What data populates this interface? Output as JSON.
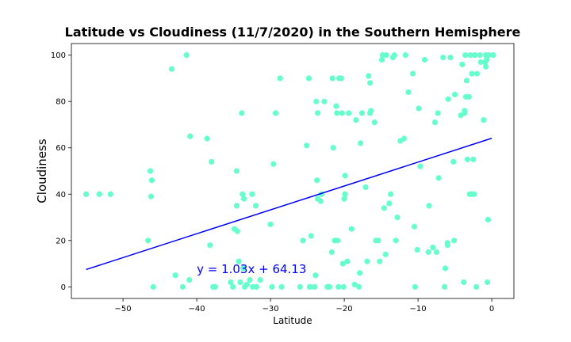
{
  "chart_data": {
    "type": "scatter",
    "title": "Latitude vs Cloudiness (11/7/2020) in the Southern Hemisphere",
    "xlabel": "Latitude",
    "ylabel": "Cloudiness",
    "xlim": [
      -57,
      3
    ],
    "ylim": [
      -5,
      105
    ],
    "xticks": [
      -50,
      -40,
      -30,
      -20,
      -10,
      0
    ],
    "yticks": [
      0,
      20,
      40,
      60,
      80,
      100
    ],
    "grid": false,
    "point_color": "#66ffcc",
    "line_color": "#0000ff",
    "regression": {
      "slope": 1.03,
      "intercept": 64.13,
      "x_range": [
        -55,
        0
      ]
    },
    "annotation": {
      "text": "y = 1.03x + 64.13",
      "x": -40,
      "y": 6,
      "color": "#0000ff"
    },
    "points": [
      [
        -55,
        40
      ],
      [
        -53.2,
        40
      ],
      [
        -51.7,
        40
      ],
      [
        -46.6,
        20
      ],
      [
        -46.3,
        50
      ],
      [
        -46.2,
        39
      ],
      [
        -46.1,
        46
      ],
      [
        -45.9,
        0
      ],
      [
        -43.4,
        94
      ],
      [
        -42.9,
        5
      ],
      [
        -41.9,
        0
      ],
      [
        -41.4,
        100
      ],
      [
        -40.9,
        65
      ],
      [
        -41.0,
        3
      ],
      [
        -38.6,
        64
      ],
      [
        -38.2,
        18
      ],
      [
        -38.0,
        54
      ],
      [
        -37.8,
        0
      ],
      [
        -37.5,
        0
      ],
      [
        -35.4,
        2
      ],
      [
        -35.1,
        0
      ],
      [
        -34.9,
        25
      ],
      [
        -34.6,
        50
      ],
      [
        -34.6,
        35
      ],
      [
        -34.5,
        24
      ],
      [
        -34.3,
        11
      ],
      [
        -34.1,
        2
      ],
      [
        -33.9,
        75
      ],
      [
        -33.8,
        40
      ],
      [
        -33.7,
        8
      ],
      [
        -33.6,
        38
      ],
      [
        -33.5,
        0
      ],
      [
        -33.2,
        1
      ],
      [
        -32.8,
        3
      ],
      [
        -32.5,
        40
      ],
      [
        -32.4,
        0
      ],
      [
        -31.9,
        0
      ],
      [
        -31.4,
        3
      ],
      [
        -32.0,
        35
      ],
      [
        -30.0,
        27
      ],
      [
        -29.8,
        0
      ],
      [
        -29.6,
        53
      ],
      [
        -29.3,
        75
      ],
      [
        -28.7,
        90
      ],
      [
        -28.5,
        0
      ],
      [
        -26.0,
        0
      ],
      [
        -25.6,
        20
      ],
      [
        -25.1,
        61
      ],
      [
        -24.8,
        90
      ],
      [
        -24.7,
        0
      ],
      [
        -24.6,
        0
      ],
      [
        -24.5,
        22
      ],
      [
        -24.0,
        0
      ],
      [
        -23.8,
        80
      ],
      [
        -23.6,
        75
      ],
      [
        -23.7,
        46
      ],
      [
        -23.6,
        38
      ],
      [
        -23.2,
        37
      ],
      [
        -23.1,
        40
      ],
      [
        -22.7,
        80
      ],
      [
        -23.9,
        5
      ],
      [
        -22.3,
        0
      ],
      [
        -22.0,
        0
      ],
      [
        -21.7,
        15
      ],
      [
        -21.6,
        90
      ],
      [
        -21.5,
        60
      ],
      [
        -21.3,
        20
      ],
      [
        -21.1,
        78
      ],
      [
        -21.0,
        75
      ],
      [
        -20.9,
        20
      ],
      [
        -20.8,
        0
      ],
      [
        -20.7,
        90
      ],
      [
        -20.4,
        90
      ],
      [
        -20.3,
        75
      ],
      [
        -20.2,
        10
      ],
      [
        -20.1,
        0
      ],
      [
        -20.0,
        38
      ],
      [
        -19.9,
        40
      ],
      [
        -19.9,
        48
      ],
      [
        -19.6,
        11
      ],
      [
        -19.4,
        75
      ],
      [
        -19.0,
        25
      ],
      [
        -18.6,
        1
      ],
      [
        -18.4,
        72
      ],
      [
        -18.0,
        0
      ],
      [
        -17.9,
        6
      ],
      [
        -17.8,
        62
      ],
      [
        -17.6,
        75
      ],
      [
        -17.1,
        43
      ],
      [
        -16.9,
        11
      ],
      [
        -16.7,
        91
      ],
      [
        -16.5,
        88
      ],
      [
        -16.5,
        75
      ],
      [
        -16.4,
        76
      ],
      [
        -15.9,
        71
      ],
      [
        -15.7,
        20
      ],
      [
        -15.4,
        20
      ],
      [
        -15.2,
        11
      ],
      [
        -14.9,
        98
      ],
      [
        -14.8,
        100
      ],
      [
        -14.6,
        34
      ],
      [
        -14.4,
        14
      ],
      [
        -14.3,
        100
      ],
      [
        -13.9,
        36
      ],
      [
        -13.7,
        40
      ],
      [
        -13.4,
        99
      ],
      [
        -13.2,
        100
      ],
      [
        -13.0,
        20
      ],
      [
        -12.8,
        30
      ],
      [
        -12.4,
        63
      ],
      [
        -11.9,
        64
      ],
      [
        -11.7,
        100
      ],
      [
        -11.3,
        84
      ],
      [
        -10.7,
        92
      ],
      [
        -10.5,
        26
      ],
      [
        -10.4,
        0
      ],
      [
        -10.1,
        16
      ],
      [
        -9.9,
        77
      ],
      [
        -9.7,
        52
      ],
      [
        -9.1,
        98
      ],
      [
        -8.6,
        15
      ],
      [
        -8.5,
        35
      ],
      [
        -8.0,
        17
      ],
      [
        -7.7,
        71
      ],
      [
        -7.5,
        15
      ],
      [
        -7.3,
        75
      ],
      [
        -7.2,
        47
      ],
      [
        -6.6,
        99
      ],
      [
        -6.4,
        0
      ],
      [
        -6.3,
        8
      ],
      [
        -6.0,
        18
      ],
      [
        -6.0,
        19
      ],
      [
        -5.9,
        81
      ],
      [
        -5.6,
        99
      ],
      [
        -5.2,
        54
      ],
      [
        -5.0,
        83
      ],
      [
        -5.1,
        20
      ],
      [
        -4.0,
        96
      ],
      [
        -3.7,
        75
      ],
      [
        -3.7,
        76
      ],
      [
        -3.5,
        82
      ],
      [
        -3.3,
        55
      ],
      [
        -3.4,
        89
      ],
      [
        -3.1,
        82
      ],
      [
        -3.0,
        40
      ],
      [
        -2.9,
        100
      ],
      [
        -2.7,
        92
      ],
      [
        -2.8,
        40
      ],
      [
        -2.5,
        55
      ],
      [
        -2.4,
        40
      ],
      [
        -2.3,
        100
      ],
      [
        -2.1,
        0
      ],
      [
        -2.0,
        92
      ],
      [
        -1.6,
        100
      ],
      [
        -1.5,
        97
      ],
      [
        -1.1,
        72
      ],
      [
        -0.8,
        95
      ],
      [
        -0.8,
        100
      ],
      [
        -0.7,
        98
      ],
      [
        -0.6,
        2
      ],
      [
        -0.5,
        29
      ],
      [
        -0.4,
        100
      ],
      [
        -3.8,
        2
      ],
      [
        0.2,
        100
      ],
      [
        -0.9,
        97
      ],
      [
        -3.6,
        100
      ],
      [
        -4.2,
        74
      ]
    ]
  }
}
